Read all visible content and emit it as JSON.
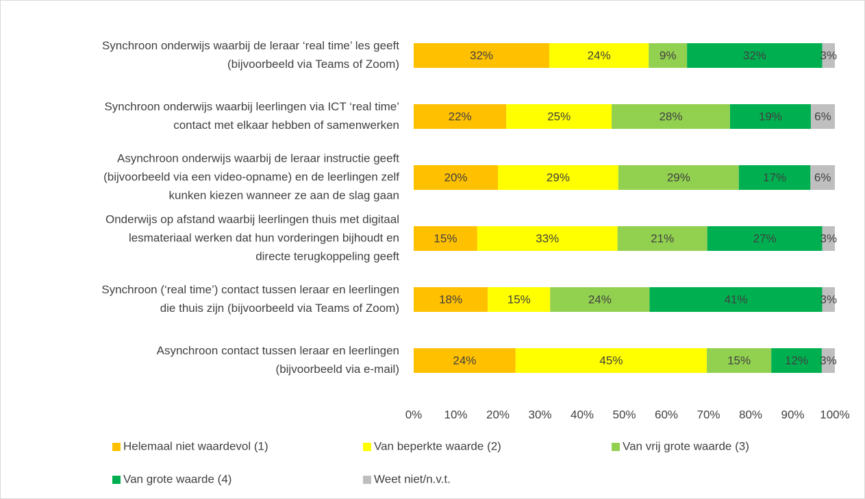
{
  "chart_data": {
    "type": "stacked-bar-horizontal",
    "categories": [
      [
        "Synchroon onderwijs waarbij de leraar ‘real time’ les geeft",
        "(bijvoorbeeld via Teams of Zoom)"
      ],
      [
        "Synchroon onderwijs waarbij leerlingen via ICT ‘real time’",
        "contact met elkaar hebben of samenwerken"
      ],
      [
        "Asynchroon onderwijs waarbij de leraar instructie geeft",
        "(bijvoorbeeld via een video-opname) en de leerlingen zelf",
        "kunken kiezen wanneer ze aan de slag gaan"
      ],
      [
        "Onderwijs op afstand waarbij leerlingen thuis met digitaal",
        "lesmateriaal werken dat hun vorderingen bijhoudt en",
        "directe terugkoppeling geeft"
      ],
      [
        "Synchroon (‘real time’) contact tussen leraar en leerlingen",
        "die thuis zijn (bijvoorbeeld via Teams of Zoom)"
      ],
      [
        "Asynchroon contact tussen leraar en leerlingen",
        "(bijvoorbeeld via e-mail)"
      ]
    ],
    "series": [
      {
        "name": "Helemaal niet waardevol (1)",
        "color": "#FFC000",
        "values": [
          32.2,
          22.0,
          20.0,
          15.1,
          17.6,
          24.2
        ],
        "value_labels": [
          "32%",
          "22%",
          "20%",
          "15%",
          "18%",
          "24%"
        ]
      },
      {
        "name": "Van beperkte waarde (2)",
        "color": "#FFFF00",
        "values": [
          23.6,
          25.0,
          28.6,
          33.3,
          14.8,
          45.4
        ],
        "value_labels": [
          "24%",
          "25%",
          "29%",
          "33%",
          "15%",
          "45%"
        ]
      },
      {
        "name": "Van vrij grote waarde (3)",
        "color": "#92D050",
        "values": [
          9.1,
          28.1,
          28.6,
          21.3,
          23.6,
          15.3
        ],
        "value_labels": [
          "9%",
          "28%",
          "29%",
          "21%",
          "24%",
          "15%"
        ]
      },
      {
        "name": "Van grote waarde (4)",
        "color": "#00B050",
        "values": [
          32.1,
          19.2,
          17.0,
          27.3,
          41.0,
          12.0
        ],
        "value_labels": [
          "32%",
          "19%",
          "17%",
          "27%",
          "41%",
          "12%"
        ]
      },
      {
        "name": "Weet niet/n.v.t.",
        "color": "#BFBFBF",
        "values": [
          3.0,
          5.7,
          5.8,
          3.0,
          3.0,
          3.1
        ],
        "value_labels": [
          "3%",
          "6%",
          "6%",
          "3%",
          "3%",
          "3%"
        ]
      }
    ],
    "xlim": [
      0,
      100
    ],
    "xticks": [
      {
        "value": 0,
        "label": "0%"
      },
      {
        "value": 10,
        "label": "10%"
      },
      {
        "value": 20,
        "label": "20%"
      },
      {
        "value": 30,
        "label": "30%"
      },
      {
        "value": 40,
        "label": "40%"
      },
      {
        "value": 50,
        "label": "50%"
      },
      {
        "value": 60,
        "label": "60%"
      },
      {
        "value": 70,
        "label": "70%"
      },
      {
        "value": 80,
        "label": "80%"
      },
      {
        "value": 90,
        "label": "90%"
      },
      {
        "value": 100,
        "label": "100%"
      }
    ],
    "legend": "bottom"
  }
}
